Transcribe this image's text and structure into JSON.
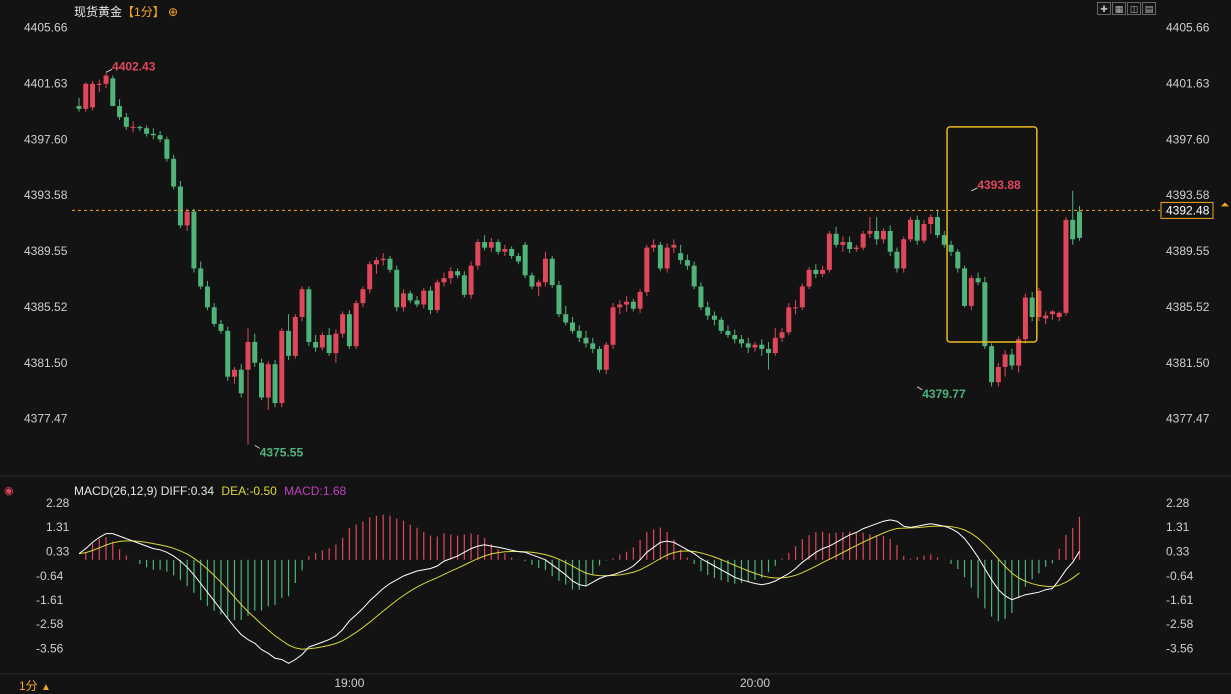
{
  "header": {
    "instrument": "现货黄金",
    "period_tag": "【1分】",
    "add_icon": "circle-plus-icon"
  },
  "toolbar": {
    "icons": [
      "crosshair-icon",
      "layout-icon",
      "dual-chart-icon",
      "chart-mode-icon"
    ]
  },
  "macd_header": {
    "name": "MACD(26,12,9)",
    "diff_label": "DIFF:",
    "diff": "0.34",
    "dea_label": "DEA:",
    "dea": "-0.50",
    "macd_label": "MACD:",
    "macd": "1.68"
  },
  "footer": {
    "period": "1分",
    "period_icon": "triangle-up-icon"
  },
  "colors": {
    "up": "#e0475b",
    "down": "#4fb37a",
    "diff_line": "#ffffff",
    "dea_line": "#d9d938",
    "macd_text": "#c040c0",
    "accent": "#f5a623",
    "highlight_box": "#e8b91c"
  },
  "chart_data": [
    {
      "type": "candlestick",
      "title": "现货黄金 1分",
      "y_ticks": [
        "4405.66",
        "4401.63",
        "4397.60",
        "4393.58",
        "4389.55",
        "4385.52",
        "4381.50",
        "4377.47"
      ],
      "ylim": [
        4375.0,
        4406.2
      ],
      "x_ticks": [
        {
          "label": "19:00",
          "index": 40
        },
        {
          "label": "20:00",
          "index": 100
        }
      ],
      "current_price": "4392.48",
      "annotations": [
        {
          "label": "4402.43",
          "index": 4,
          "value": 4402.43,
          "kind": "high"
        },
        {
          "label": "4375.55",
          "index": 26,
          "value": 4375.55,
          "kind": "low"
        },
        {
          "label": "4379.77",
          "index": 124,
          "value": 4379.77,
          "kind": "low"
        },
        {
          "label": "4393.88",
          "index": 132,
          "value": 4393.88,
          "kind": "high"
        }
      ],
      "candles": [
        [
          4400.0,
          4400.6,
          4399.6,
          4399.8
        ],
        [
          4399.8,
          4401.7,
          4399.6,
          4401.6
        ],
        [
          4399.9,
          4401.8,
          4399.7,
          4401.6
        ],
        [
          4401.6,
          4401.9,
          4401.0,
          4401.6
        ],
        [
          4401.6,
          4402.4,
          4401.3,
          4402.2
        ],
        [
          4402.0,
          4402.2,
          4400.0,
          4400.0
        ],
        [
          4400.0,
          4400.5,
          4399.0,
          4399.2
        ],
        [
          4399.2,
          4399.5,
          4398.3,
          4398.5
        ],
        [
          4398.5,
          4398.9,
          4398.1,
          4398.5
        ],
        [
          4398.5,
          4398.6,
          4398.2,
          4398.4
        ],
        [
          4398.4,
          4398.6,
          4397.8,
          4398.0
        ],
        [
          4398.0,
          4398.4,
          4397.6,
          4397.9
        ],
        [
          4397.9,
          4398.2,
          4397.4,
          4397.6
        ],
        [
          4397.6,
          4397.8,
          4396.0,
          4396.2
        ],
        [
          4396.2,
          4396.5,
          4394.0,
          4394.2
        ],
        [
          4394.2,
          4394.6,
          4391.2,
          4391.4
        ],
        [
          4391.4,
          4392.6,
          4391.0,
          4392.4
        ],
        [
          4392.4,
          4392.6,
          4388.0,
          4388.3
        ],
        [
          4388.3,
          4388.8,
          4386.8,
          4387.0
        ],
        [
          4387.0,
          4387.4,
          4385.3,
          4385.5
        ],
        [
          4385.5,
          4385.8,
          4384.1,
          4384.3
        ],
        [
          4384.3,
          4384.6,
          4383.6,
          4383.8
        ],
        [
          4383.8,
          4384.1,
          4380.2,
          4380.5
        ],
        [
          4380.5,
          4381.2,
          4380.0,
          4381.0
        ],
        [
          4381.0,
          4381.4,
          4379.0,
          4379.3
        ],
        [
          4381.0,
          4384.0,
          4375.6,
          4383.0
        ],
        [
          4383.0,
          4383.6,
          4381.2,
          4381.5
        ],
        [
          4381.5,
          4381.8,
          4378.8,
          4379.0
        ],
        [
          4379.0,
          4381.6,
          4378.1,
          4381.4
        ],
        [
          4381.4,
          4381.7,
          4378.3,
          4378.6
        ],
        [
          4378.6,
          4384.0,
          4378.3,
          4383.8
        ],
        [
          4383.8,
          4385.0,
          4381.7,
          4382.0
        ],
        [
          4382.0,
          4385.0,
          4381.8,
          4384.8
        ],
        [
          4384.8,
          4387.0,
          4384.5,
          4386.8
        ],
        [
          4386.8,
          4387.0,
          4382.7,
          4383.0
        ],
        [
          4383.0,
          4383.5,
          4382.3,
          4382.6
        ],
        [
          4382.6,
          4383.7,
          4382.4,
          4383.5
        ],
        [
          4383.5,
          4384.0,
          4382.0,
          4382.2
        ],
        [
          4382.2,
          4383.9,
          4381.5,
          4383.6
        ],
        [
          4383.6,
          4385.2,
          4383.3,
          4385.0
        ],
        [
          4385.0,
          4385.3,
          4382.5,
          4382.7
        ],
        [
          4382.7,
          4386.0,
          4382.5,
          4385.8
        ],
        [
          4385.8,
          4387.0,
          4385.5,
          4386.8
        ],
        [
          4386.8,
          4388.8,
          4386.5,
          4388.6
        ],
        [
          4388.6,
          4389.1,
          4387.9,
          4388.9
        ],
        [
          4388.9,
          4389.4,
          4388.5,
          4389.0
        ],
        [
          4389.0,
          4389.2,
          4388.0,
          4388.2
        ],
        [
          4388.2,
          4388.5,
          4385.2,
          4385.5
        ],
        [
          4385.5,
          4386.8,
          4385.2,
          4386.5
        ],
        [
          4386.5,
          4386.7,
          4385.8,
          4386.0
        ],
        [
          4386.0,
          4386.3,
          4385.5,
          4385.7
        ],
        [
          4385.7,
          4386.9,
          4385.4,
          4386.7
        ],
        [
          4386.7,
          4387.0,
          4385.0,
          4385.3
        ],
        [
          4385.3,
          4387.5,
          4385.1,
          4387.3
        ],
        [
          4387.3,
          4388.0,
          4387.0,
          4387.6
        ],
        [
          4387.6,
          4388.4,
          4387.2,
          4388.1
        ],
        [
          4388.1,
          4388.3,
          4387.6,
          4387.8
        ],
        [
          4387.8,
          4388.1,
          4386.2,
          4386.4
        ],
        [
          4386.4,
          4388.8,
          4386.1,
          4388.5
        ],
        [
          4388.5,
          4390.4,
          4388.2,
          4390.2
        ],
        [
          4390.2,
          4390.7,
          4389.6,
          4389.8
        ],
        [
          4389.8,
          4390.5,
          4389.5,
          4390.2
        ],
        [
          4390.2,
          4390.4,
          4389.3,
          4389.5
        ],
        [
          4389.5,
          4390.0,
          4389.2,
          4389.7
        ],
        [
          4389.7,
          4389.9,
          4389.0,
          4389.2
        ],
        [
          4389.2,
          4389.4,
          4388.6,
          4388.8
        ],
        [
          4390.0,
          4390.2,
          4387.6,
          4387.8
        ],
        [
          4387.8,
          4388.0,
          4386.8,
          4387.0
        ],
        [
          4387.0,
          4387.5,
          4386.3,
          4387.3
        ],
        [
          4387.3,
          4389.5,
          4387.0,
          4389.0
        ],
        [
          4389.0,
          4389.2,
          4386.9,
          4387.1
        ],
        [
          4387.1,
          4387.4,
          4384.8,
          4385.0
        ],
        [
          4385.0,
          4385.6,
          4384.2,
          4384.4
        ],
        [
          4384.4,
          4384.8,
          4383.6,
          4383.8
        ],
        [
          4383.8,
          4384.2,
          4383.0,
          4383.3
        ],
        [
          4383.3,
          4383.8,
          4382.6,
          4382.9
        ],
        [
          4382.9,
          4383.3,
          4382.2,
          4382.5
        ],
        [
          4382.5,
          4382.7,
          4380.8,
          4381.0
        ],
        [
          4381.0,
          4383.0,
          4380.7,
          4382.8
        ],
        [
          4382.8,
          4385.8,
          4382.5,
          4385.5
        ],
        [
          4385.5,
          4386.0,
          4385.0,
          4385.7
        ],
        [
          4385.7,
          4386.3,
          4385.2,
          4385.9
        ],
        [
          4385.9,
          4386.1,
          4385.2,
          4385.4
        ],
        [
          4385.4,
          4386.8,
          4385.1,
          4386.6
        ],
        [
          4386.6,
          4390.0,
          4386.3,
          4389.8
        ],
        [
          4389.8,
          4390.4,
          4389.5,
          4390.0
        ],
        [
          4390.0,
          4390.2,
          4388.1,
          4388.3
        ],
        [
          4388.3,
          4390.1,
          4388.0,
          4389.8
        ],
        [
          4389.8,
          4390.4,
          4389.4,
          4390.0
        ],
        [
          4389.4,
          4390.0,
          4388.6,
          4388.9
        ],
        [
          4388.9,
          4389.3,
          4388.2,
          4388.5
        ],
        [
          4388.5,
          4388.8,
          4386.8,
          4387.0
        ],
        [
          4387.0,
          4387.3,
          4385.3,
          4385.5
        ],
        [
          4385.5,
          4385.9,
          4384.6,
          4384.9
        ],
        [
          4384.9,
          4385.2,
          4384.2,
          4384.6
        ],
        [
          4384.6,
          4384.8,
          4383.6,
          4383.8
        ],
        [
          4383.8,
          4384.2,
          4383.3,
          4383.5
        ],
        [
          4383.5,
          4383.9,
          4382.9,
          4383.2
        ],
        [
          4383.2,
          4383.5,
          4382.6,
          4382.9
        ],
        [
          4382.9,
          4383.3,
          4382.2,
          4382.6
        ],
        [
          4382.6,
          4383.0,
          4382.3,
          4382.8
        ],
        [
          4382.8,
          4383.2,
          4382.0,
          4382.5
        ],
        [
          4382.5,
          4383.0,
          4381.0,
          4382.2
        ],
        [
          4382.2,
          4384.0,
          4382.0,
          4383.3
        ],
        [
          4383.3,
          4384.0,
          4383.0,
          4383.7
        ],
        [
          4383.7,
          4385.8,
          4383.5,
          4385.5
        ],
        [
          4385.5,
          4386.0,
          4385.0,
          4385.5
        ],
        [
          4385.5,
          4387.2,
          4385.3,
          4387.0
        ],
        [
          4387.0,
          4388.4,
          4386.8,
          4388.2
        ],
        [
          4388.2,
          4388.6,
          4387.6,
          4387.9
        ],
        [
          4387.9,
          4388.5,
          4387.7,
          4388.2
        ],
        [
          4388.2,
          4391.0,
          4388.0,
          4390.8
        ],
        [
          4390.8,
          4391.3,
          4389.8,
          4390.0
        ],
        [
          4390.0,
          4390.6,
          4389.5,
          4390.2
        ],
        [
          4390.2,
          4390.6,
          4389.4,
          4389.7
        ],
        [
          4389.7,
          4390.0,
          4389.5,
          4389.8
        ],
        [
          4389.8,
          4391.0,
          4389.6,
          4390.8
        ],
        [
          4390.8,
          4392.0,
          4390.5,
          4391.0
        ],
        [
          4391.0,
          4392.0,
          4390.0,
          4390.4
        ],
        [
          4390.4,
          4391.2,
          4390.1,
          4391.0
        ],
        [
          4391.0,
          4391.4,
          4389.2,
          4389.5
        ],
        [
          4389.5,
          4389.8,
          4388.0,
          4388.3
        ],
        [
          4388.3,
          4390.6,
          4388.0,
          4390.4
        ],
        [
          4390.4,
          4392.0,
          4390.2,
          4391.8
        ],
        [
          4391.8,
          4392.1,
          4390.0,
          4390.3
        ],
        [
          4390.3,
          4391.8,
          4390.1,
          4391.5
        ],
        [
          4391.5,
          4392.2,
          4390.8,
          4392.0
        ],
        [
          4392.0,
          4392.5,
          4390.5,
          4390.7
        ],
        [
          4390.7,
          4391.0,
          4389.8,
          4390.0
        ],
        [
          4390.0,
          4390.3,
          4389.2,
          4389.5
        ],
        [
          4389.5,
          4389.7,
          4388.0,
          4388.3
        ],
        [
          4388.3,
          4388.5,
          4385.5,
          4385.6
        ],
        [
          4385.6,
          4387.8,
          4385.3,
          4387.6
        ],
        [
          4387.6,
          4388.0,
          4387.1,
          4387.3
        ],
        [
          4387.3,
          4387.7,
          4382.5,
          4382.7
        ],
        [
          4382.7,
          4382.9,
          4379.8,
          4380.1
        ],
        [
          4380.1,
          4381.5,
          4379.8,
          4381.2
        ],
        [
          4381.2,
          4382.4,
          4380.5,
          4382.1
        ],
        [
          4382.1,
          4382.5,
          4381.0,
          4381.3
        ],
        [
          4381.3,
          4383.4,
          4380.8,
          4383.2
        ],
        [
          4383.2,
          4386.5,
          4382.9,
          4386.2
        ],
        [
          4386.2,
          4386.6,
          4384.5,
          4384.8
        ],
        [
          4384.8,
          4386.9,
          4384.5,
          4386.7
        ],
        [
          4384.7,
          4385.2,
          4384.3,
          4384.9
        ],
        [
          4385.0,
          4385.3,
          4384.6,
          4385.2
        ],
        [
          4384.8,
          4385.2,
          4384.5,
          4385.1
        ],
        [
          4385.1,
          4392.0,
          4384.9,
          4391.8
        ],
        [
          4391.8,
          4393.9,
          4390.0,
          4390.4
        ],
        [
          4392.4,
          4392.8,
          4390.3,
          4390.5
        ]
      ]
    },
    {
      "type": "macd",
      "name": "MACD(26,12,9)",
      "y_ticks": [
        "2.28",
        "1.31",
        "0.33",
        "-0.64",
        "-1.61",
        "-2.58",
        "-3.56"
      ],
      "ylim": [
        -4.5,
        2.8
      ],
      "diff": [
        0.25,
        0.45,
        0.7,
        0.9,
        1.05,
        1.05,
        0.95,
        0.85,
        0.75,
        0.65,
        0.55,
        0.45,
        0.4,
        0.3,
        0.15,
        -0.05,
        -0.3,
        -0.6,
        -0.95,
        -1.3,
        -1.65,
        -2.0,
        -2.35,
        -2.7,
        -3.0,
        -3.2,
        -3.35,
        -3.6,
        -3.75,
        -3.95,
        -4.0,
        -4.15,
        -4.0,
        -3.8,
        -3.5,
        -3.4,
        -3.3,
        -3.2,
        -3.05,
        -2.8,
        -2.45,
        -2.2,
        -1.95,
        -1.65,
        -1.4,
        -1.15,
        -0.95,
        -0.8,
        -0.65,
        -0.55,
        -0.45,
        -0.4,
        -0.35,
        -0.25,
        -0.05,
        0.05,
        0.15,
        0.3,
        0.45,
        0.55,
        0.6,
        0.55,
        0.5,
        0.45,
        0.38,
        0.33,
        0.3,
        0.2,
        0.1,
        0.0,
        -0.2,
        -0.4,
        -0.6,
        -0.85,
        -1.0,
        -1.05,
        -0.9,
        -0.75,
        -0.65,
        -0.6,
        -0.5,
        -0.4,
        -0.25,
        0.0,
        0.3,
        0.5,
        0.7,
        0.75,
        0.7,
        0.55,
        0.4,
        0.25,
        0.05,
        -0.1,
        -0.25,
        -0.4,
        -0.55,
        -0.7,
        -0.8,
        -0.88,
        -0.95,
        -1.0,
        -0.95,
        -0.85,
        -0.7,
        -0.55,
        -0.35,
        -0.1,
        0.1,
        0.3,
        0.45,
        0.55,
        0.7,
        0.85,
        1.0,
        1.1,
        1.25,
        1.35,
        1.45,
        1.55,
        1.6,
        1.55,
        1.35,
        1.3,
        1.35,
        1.4,
        1.45,
        1.4,
        1.35,
        1.25,
        1.1,
        0.85,
        0.5,
        0.1,
        -0.35,
        -0.8,
        -1.2,
        -1.45,
        -1.6,
        -1.5,
        -1.4,
        -1.35,
        -1.3,
        -1.2,
        -1.15,
        -0.8,
        -0.4,
        -0.1,
        0.34
      ]
    }
  ]
}
